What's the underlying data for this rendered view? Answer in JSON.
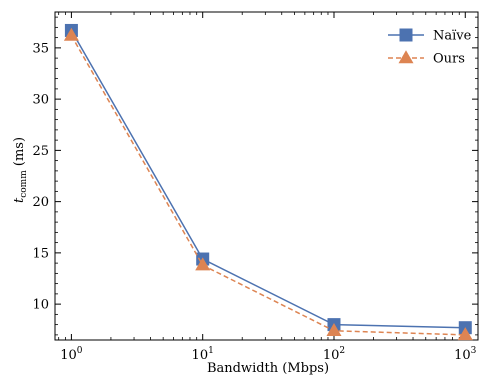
{
  "chart_data": {
    "type": "line",
    "title": "",
    "xlabel": "Bandwidth (Mbps)",
    "ylabel_main": "t",
    "ylabel_sub": "comm",
    "ylabel_unit": " (ms)",
    "x_scale": "log",
    "xlim": [
      0.75,
      1250
    ],
    "ylim": [
      6.5,
      38.5
    ],
    "x": [
      1,
      10,
      100,
      1000
    ],
    "x_ticks": [
      {
        "value": 1,
        "base": "10",
        "exp": "0"
      },
      {
        "value": 10,
        "base": "10",
        "exp": "1"
      },
      {
        "value": 100,
        "base": "10",
        "exp": "2"
      },
      {
        "value": 1000,
        "base": "10",
        "exp": "3"
      }
    ],
    "y_ticks": [
      10,
      15,
      20,
      25,
      30,
      35
    ],
    "grid": false,
    "legend_position": "top-right",
    "series": [
      {
        "name": "Naïve",
        "values": [
          36.7,
          14.4,
          8.0,
          7.7
        ],
        "color": "#4c72b0",
        "marker": "square",
        "line": "solid"
      },
      {
        "name": "Ours",
        "values": [
          36.2,
          13.8,
          7.4,
          7.0
        ],
        "color": "#dd8452",
        "marker": "triangle",
        "line": "dashed"
      }
    ]
  }
}
